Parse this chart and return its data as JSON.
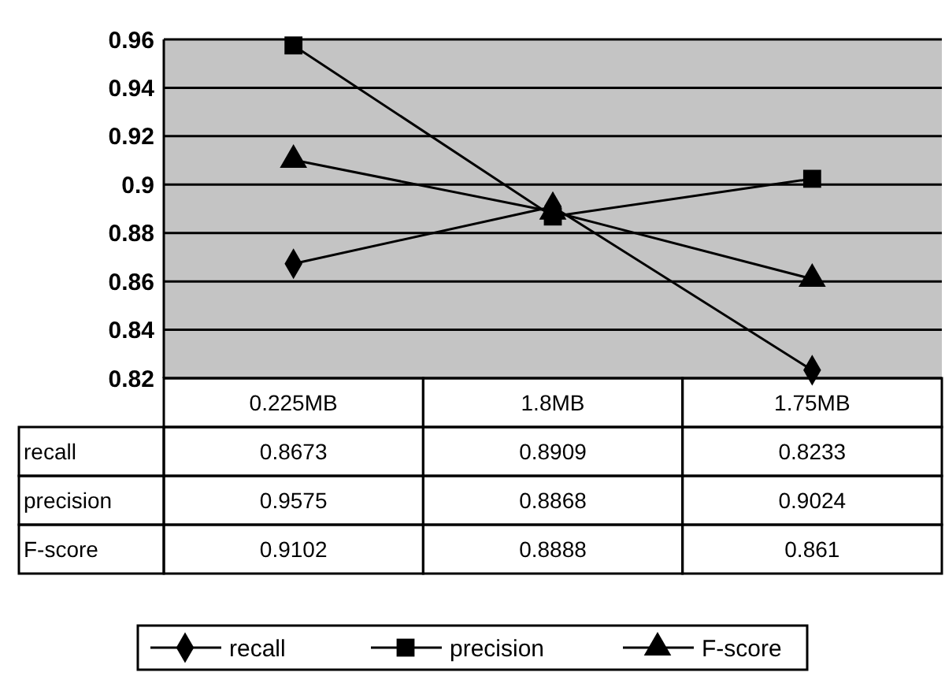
{
  "chart_data": {
    "type": "line",
    "categories": [
      "0.225MB",
      "1.8MB",
      "1.75MB"
    ],
    "series": [
      {
        "name": "recall",
        "color": "#000000",
        "marker": "diamond",
        "values": [
          0.8673,
          0.8909,
          0.8233
        ]
      },
      {
        "name": "precision",
        "color": "#000000",
        "marker": "square",
        "values": [
          0.9575,
          0.8868,
          0.9024
        ]
      },
      {
        "name": "F-score",
        "color": "#000000",
        "marker": "triangle",
        "values": [
          0.9102,
          0.8888,
          0.861
        ]
      }
    ],
    "ylim": [
      0.82,
      0.96
    ],
    "yticks": [
      0.82,
      0.84,
      0.86,
      0.88,
      0.9,
      0.92,
      0.94,
      0.96
    ],
    "grid": "y",
    "legend": "bottom",
    "data_labels": true
  }
}
